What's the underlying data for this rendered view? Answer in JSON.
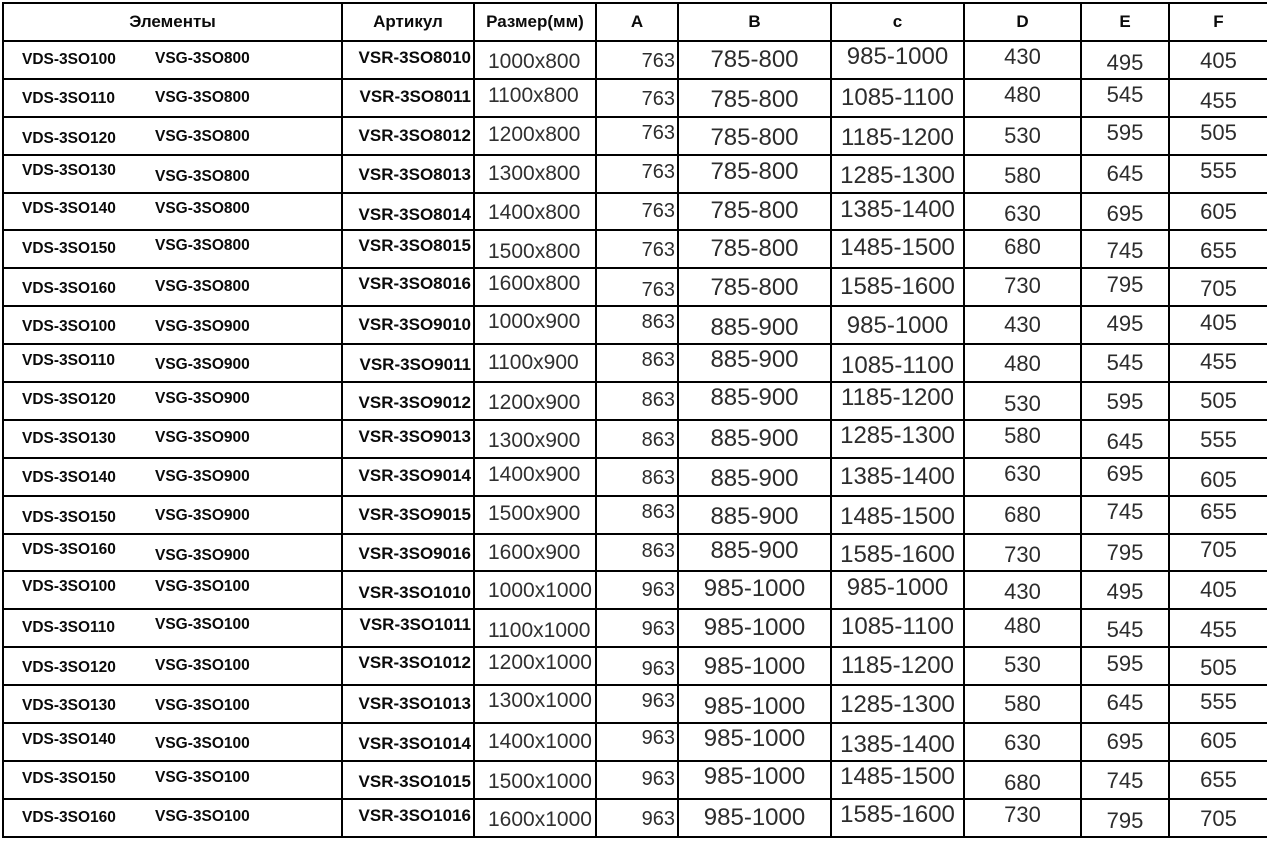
{
  "colors": {
    "background": "#ffffff",
    "grid_line": "#000000",
    "code_text": "#0a0a0a",
    "number_text": "#2c2c2c"
  },
  "table": {
    "columns": [
      {
        "key": "elements",
        "label": "Элементы"
      },
      {
        "key": "article",
        "label": "Артикул"
      },
      {
        "key": "size",
        "label": "Размер(мм)"
      },
      {
        "key": "a",
        "label": "A"
      },
      {
        "key": "b",
        "label": "B"
      },
      {
        "key": "c",
        "label": "c"
      },
      {
        "key": "d",
        "label": "D"
      },
      {
        "key": "e",
        "label": "E"
      },
      {
        "key": "f",
        "label": "F"
      }
    ],
    "rows": [
      {
        "element1": "VDS-3SO100",
        "element2": "VSG-3SO800",
        "article": "VSR-3SO8010",
        "size": "1000x800",
        "a": "763",
        "b": "785-800",
        "c": "985-1000",
        "d": "430",
        "e": "495",
        "f": "405"
      },
      {
        "element1": "VDS-3SO110",
        "element2": "VSG-3SO800",
        "article": "VSR-3SO8011",
        "size": "1100x800",
        "a": "763",
        "b": "785-800",
        "c": "1085-1100",
        "d": "480",
        "e": "545",
        "f": "455"
      },
      {
        "element1": "VDS-3SO120",
        "element2": "VSG-3SO800",
        "article": "VSR-3SO8012",
        "size": "1200x800",
        "a": "763",
        "b": "785-800",
        "c": "1185-1200",
        "d": "530",
        "e": "595",
        "f": "505"
      },
      {
        "element1": "VDS-3SO130",
        "element2": "VSG-3SO800",
        "article": "VSR-3SO8013",
        "size": "1300x800",
        "a": "763",
        "b": "785-800",
        "c": "1285-1300",
        "d": "580",
        "e": "645",
        "f": "555"
      },
      {
        "element1": "VDS-3SO140",
        "element2": "VSG-3SO800",
        "article": "VSR-3SO8014",
        "size": "1400x800",
        "a": "763",
        "b": "785-800",
        "c": "1385-1400",
        "d": "630",
        "e": "695",
        "f": "605"
      },
      {
        "element1": "VDS-3SO150",
        "element2": "VSG-3SO800",
        "article": "VSR-3SO8015",
        "size": "1500x800",
        "a": "763",
        "b": "785-800",
        "c": "1485-1500",
        "d": "680",
        "e": "745",
        "f": "655"
      },
      {
        "element1": "VDS-3SO160",
        "element2": "VSG-3SO800",
        "article": "VSR-3SO8016",
        "size": "1600x800",
        "a": "763",
        "b": "785-800",
        "c": "1585-1600",
        "d": "730",
        "e": "795",
        "f": "705"
      },
      {
        "element1": "VDS-3SO100",
        "element2": "VSG-3SO900",
        "article": "VSR-3SO9010",
        "size": "1000x900",
        "a": "863",
        "b": "885-900",
        "c": "985-1000",
        "d": "430",
        "e": "495",
        "f": "405"
      },
      {
        "element1": "VDS-3SO110",
        "element2": "VSG-3SO900",
        "article": "VSR-3SO9011",
        "size": "1100x900",
        "a": "863",
        "b": "885-900",
        "c": "1085-1100",
        "d": "480",
        "e": "545",
        "f": "455"
      },
      {
        "element1": "VDS-3SO120",
        "element2": "VSG-3SO900",
        "article": "VSR-3SO9012",
        "size": "1200x900",
        "a": "863",
        "b": "885-900",
        "c": "1185-1200",
        "d": "530",
        "e": "595",
        "f": "505"
      },
      {
        "element1": "VDS-3SO130",
        "element2": "VSG-3SO900",
        "article": "VSR-3SO9013",
        "size": "1300x900",
        "a": "863",
        "b": "885-900",
        "c": "1285-1300",
        "d": "580",
        "e": "645",
        "f": "555"
      },
      {
        "element1": "VDS-3SO140",
        "element2": "VSG-3SO900",
        "article": "VSR-3SO9014",
        "size": "1400x900",
        "a": "863",
        "b": "885-900",
        "c": "1385-1400",
        "d": "630",
        "e": "695",
        "f": "605"
      },
      {
        "element1": "VDS-3SO150",
        "element2": "VSG-3SO900",
        "article": "VSR-3SO9015",
        "size": "1500x900",
        "a": "863",
        "b": "885-900",
        "c": "1485-1500",
        "d": "680",
        "e": "745",
        "f": "655"
      },
      {
        "element1": "VDS-3SO160",
        "element2": "VSG-3SO900",
        "article": "VSR-3SO9016",
        "size": "1600x900",
        "a": "863",
        "b": "885-900",
        "c": "1585-1600",
        "d": "730",
        "e": "795",
        "f": "705"
      },
      {
        "element1": "VDS-3SO100",
        "element2": "VSG-3SO100",
        "article": "VSR-3SO1010",
        "size": "1000x1000",
        "a": "963",
        "b": "985-1000",
        "c": "985-1000",
        "d": "430",
        "e": "495",
        "f": "405"
      },
      {
        "element1": "VDS-3SO110",
        "element2": "VSG-3SO100",
        "article": "VSR-3SO1011",
        "size": "1100x1000",
        "a": "963",
        "b": "985-1000",
        "c": "1085-1100",
        "d": "480",
        "e": "545",
        "f": "455"
      },
      {
        "element1": "VDS-3SO120",
        "element2": "VSG-3SO100",
        "article": "VSR-3SO1012",
        "size": "1200x1000",
        "a": "963",
        "b": "985-1000",
        "c": "1185-1200",
        "d": "530",
        "e": "595",
        "f": "505"
      },
      {
        "element1": "VDS-3SO130",
        "element2": "VSG-3SO100",
        "article": "VSR-3SO1013",
        "size": "1300x1000",
        "a": "963",
        "b": "985-1000",
        "c": "1285-1300",
        "d": "580",
        "e": "645",
        "f": "555"
      },
      {
        "element1": "VDS-3SO140",
        "element2": "VSG-3SO100",
        "article": "VSR-3SO1014",
        "size": "1400x1000",
        "a": "963",
        "b": "985-1000",
        "c": "1385-1400",
        "d": "630",
        "e": "695",
        "f": "605"
      },
      {
        "element1": "VDS-3SO150",
        "element2": "VSG-3SO100",
        "article": "VSR-3SO1015",
        "size": "1500x1000",
        "a": "963",
        "b": "985-1000",
        "c": "1485-1500",
        "d": "680",
        "e": "745",
        "f": "655"
      },
      {
        "element1": "VDS-3SO160",
        "element2": "VSG-3SO100",
        "article": "VSR-3SO1016",
        "size": "1600x1000",
        "a": "963",
        "b": "985-1000",
        "c": "1585-1600",
        "d": "730",
        "e": "795",
        "f": "705"
      }
    ]
  }
}
